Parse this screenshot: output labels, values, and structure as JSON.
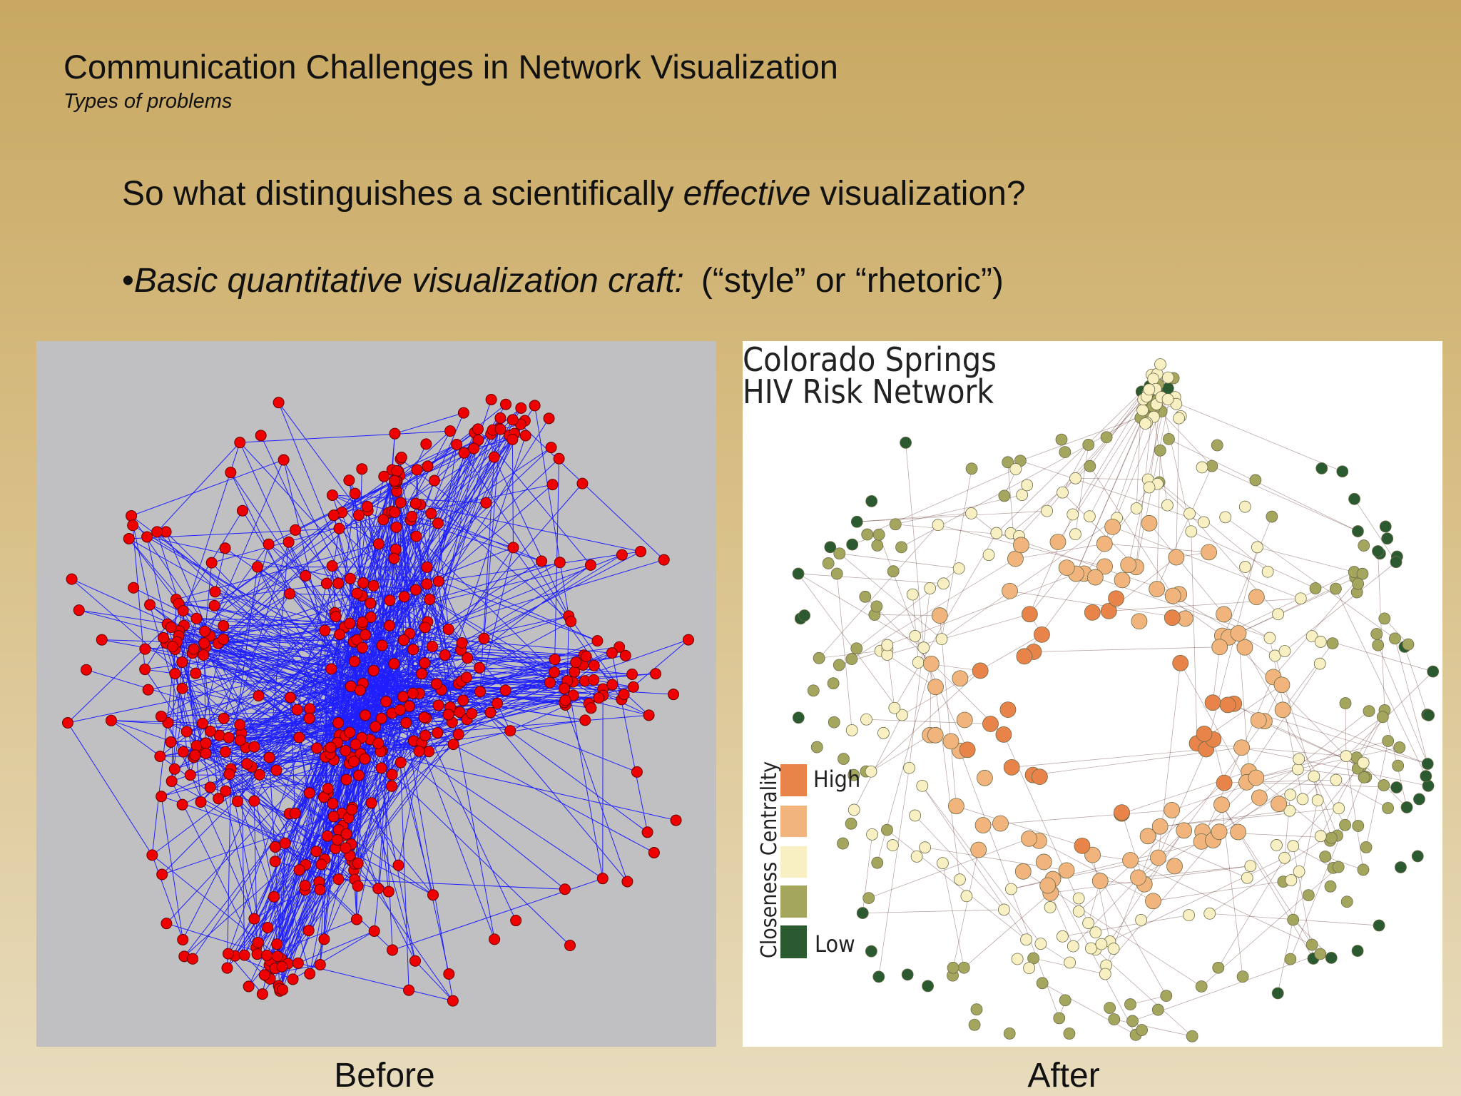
{
  "header": {
    "title": "Communication Challenges in Network Visualization",
    "subtitle": "Types of problems"
  },
  "body": {
    "question": {
      "before": "So what distinguishes a scientifically",
      "emphasis": "effective",
      "after": "visualization?"
    },
    "bullet": {
      "marker": "•",
      "emphasis": "Basic quantitative visualization craft:",
      "text": "(“style” or “rhetoric”)"
    }
  },
  "figures": [
    {
      "caption": "Before"
    },
    {
      "caption": "After",
      "title_lines": [
        "Colorado Springs",
        "HIV Risk Network"
      ],
      "legend": {
        "title": "Closeness Centrality",
        "high": "High",
        "low": "Low"
      }
    }
  ]
}
